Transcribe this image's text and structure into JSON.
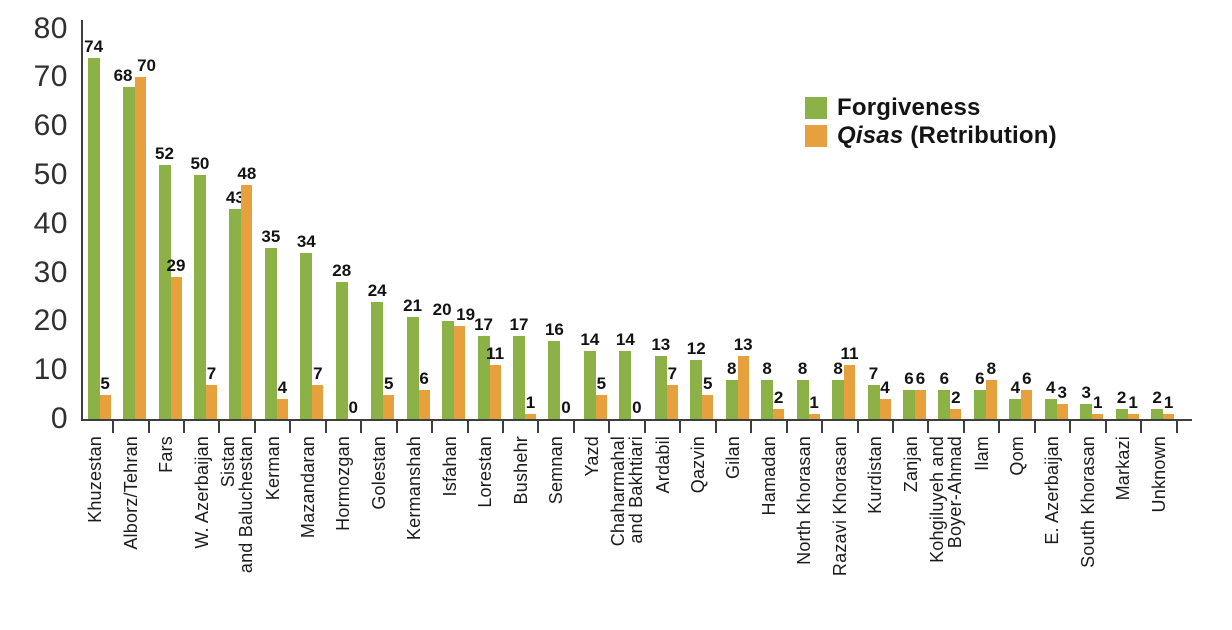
{
  "chart_data": {
    "type": "bar",
    "title": "",
    "xlabel": "",
    "ylabel": "",
    "ylim": [
      0,
      80
    ],
    "yticks": [
      0,
      10,
      20,
      30,
      40,
      50,
      60,
      70,
      80
    ],
    "grid": false,
    "legend_position": "top-right",
    "categories": [
      "Khuzestan",
      "Alborz/Tehran",
      "Fars",
      "W. Azerbaijan",
      "Sistan\nand Baluchestan",
      "Kerman",
      "Mazandaran",
      "Hormozgan",
      "Golestan",
      "Kermanshah",
      "Isfahan",
      "Lorestan",
      "Bushehr",
      "Semnan",
      "Yazd",
      "Chaharmahal\nand Bakhtiari",
      "Ardabil",
      "Qazvin",
      "Gilan",
      "Hamadan",
      "North Khorasan",
      "Razavi Khorasan",
      "Kurdistan",
      "Zanjan",
      "Kohgiluyeh and\nBoyer-Ahmad",
      "Ilam",
      "Qom",
      "E. Azerbaijan",
      "South Khorasan",
      "Markazi",
      "Unknown"
    ],
    "series": [
      {
        "name": "Forgiveness",
        "color": "#8cb247",
        "values": [
          74,
          68,
          52,
          50,
          43,
          35,
          34,
          28,
          24,
          21,
          20,
          17,
          17,
          16,
          14,
          14,
          13,
          12,
          8,
          8,
          8,
          8,
          7,
          6,
          6,
          6,
          4,
          4,
          3,
          2,
          2
        ]
      },
      {
        "name": "Qisas (Retribution)",
        "color": "#e6a03d",
        "values": [
          5,
          70,
          29,
          7,
          48,
          4,
          7,
          0,
          5,
          6,
          19,
          11,
          1,
          0,
          5,
          0,
          7,
          5,
          13,
          2,
          1,
          11,
          4,
          6,
          2,
          8,
          6,
          3,
          1,
          1,
          1
        ]
      }
    ],
    "legend": {
      "items": [
        {
          "italic": "",
          "rest": "Forgiveness",
          "color": "#8cb247"
        },
        {
          "italic": "Qisas",
          "rest": " (Retribution)",
          "color": "#e6a03d"
        }
      ]
    }
  }
}
